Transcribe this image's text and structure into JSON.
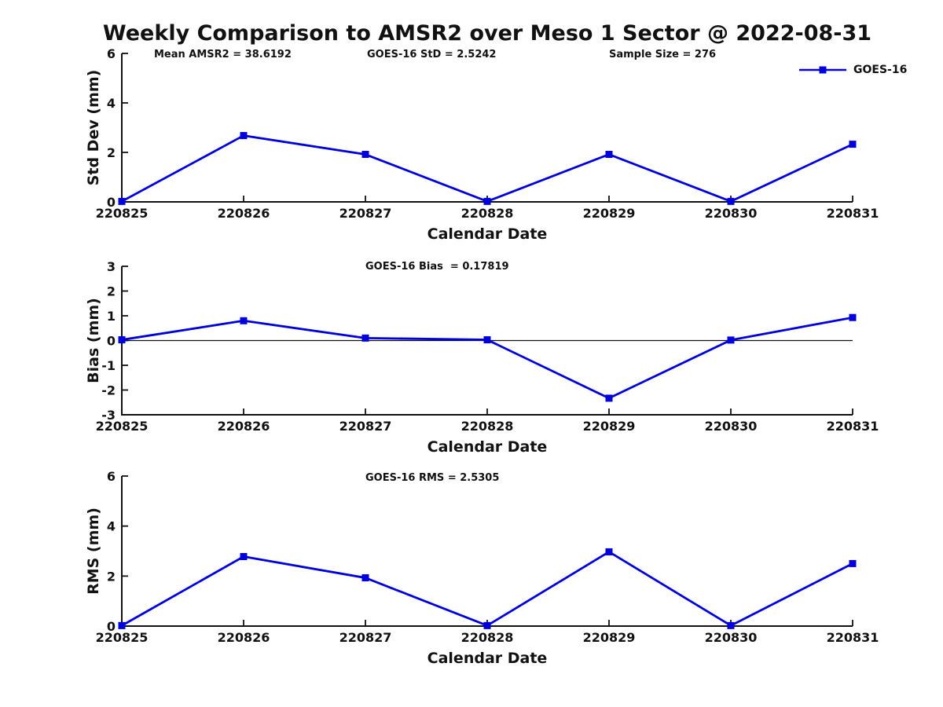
{
  "figure": {
    "title": "Weekly Comparison to AMSR2 over Meso 1 Sector @ 2022-08-31",
    "background": "#ffffff",
    "legend": {
      "label": "GOES-16",
      "color": "#0000dd",
      "position": "top-right"
    }
  },
  "annotations": {
    "mean_amsr2": "Mean AMSR2 = 38.6192",
    "goes16_std": "GOES-16 StD = 2.5242",
    "sample_size": "Sample Size = 276",
    "goes16_bias": "GOES-16 Bias  = 0.17819",
    "goes16_rms": "GOES-16 RMS = 2.5305"
  },
  "chart_data": [
    {
      "type": "line",
      "id": "std-dev",
      "annotations": [
        "Mean AMSR2 = 38.6192",
        "GOES-16 StD = 2.5242",
        "Sample Size = 276"
      ],
      "categories": [
        "220825",
        "220826",
        "220827",
        "220828",
        "220829",
        "220830",
        "220831"
      ],
      "series": [
        {
          "name": "GOES-16",
          "color": "#0000dd",
          "marker": "square",
          "values": [
            0.02,
            2.68,
            1.92,
            0.02,
            1.92,
            0.02,
            2.33
          ]
        }
      ],
      "xlabel": "Calendar Date",
      "ylabel": "Std Dev (mm)",
      "ylim": [
        0,
        6
      ],
      "yticks": [
        0,
        2,
        4,
        6
      ],
      "zero_line": false,
      "grid": false,
      "legend_entries": [
        "GOES-16"
      ],
      "legend_position": "top-right"
    },
    {
      "type": "line",
      "id": "bias",
      "annotations": [
        "GOES-16 Bias  = 0.17819"
      ],
      "categories": [
        "220825",
        "220826",
        "220827",
        "220828",
        "220829",
        "220830",
        "220831"
      ],
      "series": [
        {
          "name": "GOES-16",
          "color": "#0000dd",
          "marker": "square",
          "values": [
            0.03,
            0.8,
            0.1,
            0.03,
            -2.33,
            0.02,
            0.93
          ]
        }
      ],
      "xlabel": "Calendar Date",
      "ylabel": "Bias (mm)",
      "ylim": [
        -3,
        3
      ],
      "yticks": [
        -3,
        -2,
        -1,
        0,
        1,
        2,
        3
      ],
      "zero_line": true,
      "grid": false,
      "legend_entries": [],
      "legend_position": "none"
    },
    {
      "type": "line",
      "id": "rms",
      "annotations": [
        "GOES-16 RMS = 2.5305"
      ],
      "categories": [
        "220825",
        "220826",
        "220827",
        "220828",
        "220829",
        "220830",
        "220831"
      ],
      "series": [
        {
          "name": "GOES-16",
          "color": "#0000dd",
          "marker": "square",
          "values": [
            0.02,
            2.78,
            1.93,
            0.02,
            2.97,
            0.02,
            2.5
          ]
        }
      ],
      "xlabel": "Calendar Date",
      "ylabel": "RMS (mm)",
      "ylim": [
        0,
        6
      ],
      "yticks": [
        0,
        2,
        4,
        6
      ],
      "zero_line": false,
      "grid": false,
      "legend_entries": [],
      "legend_position": "none"
    }
  ]
}
